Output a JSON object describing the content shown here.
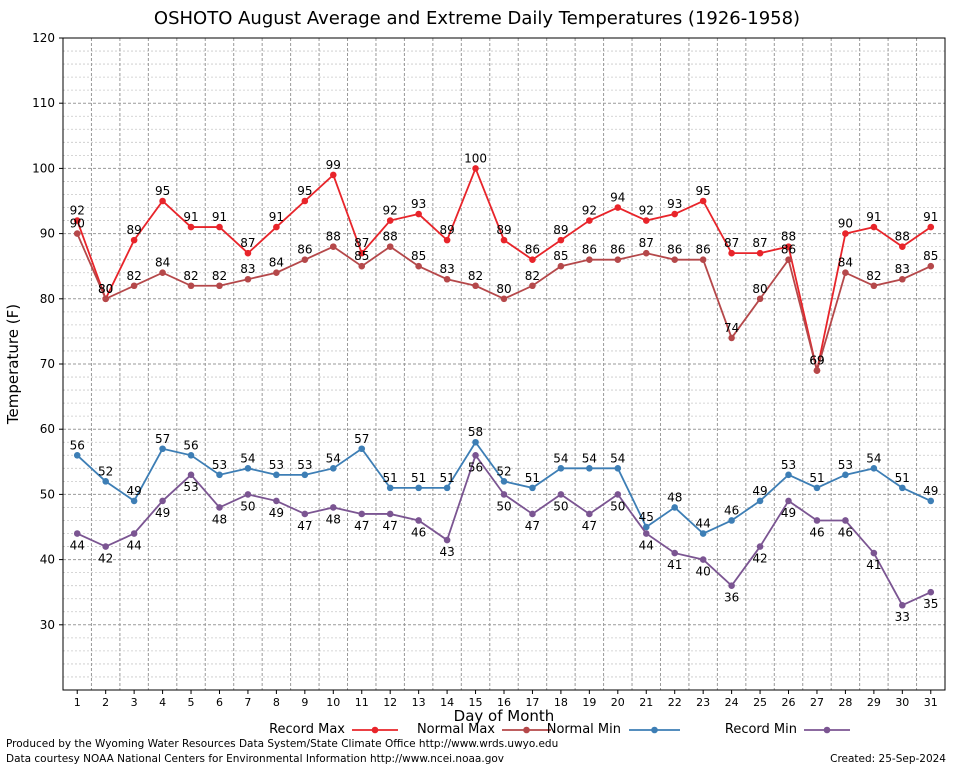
{
  "chart_data": {
    "type": "line",
    "title": "OSHOTO August Average and Extreme Daily Temperatures (1926-1958)",
    "xlabel": "Day of Month",
    "ylabel": "Temperature (F)",
    "ylim": [
      20,
      120
    ],
    "yticks": [
      30,
      40,
      50,
      60,
      70,
      80,
      90,
      100,
      110,
      120
    ],
    "x": [
      1,
      2,
      3,
      4,
      5,
      6,
      7,
      8,
      9,
      10,
      11,
      12,
      13,
      14,
      15,
      16,
      17,
      18,
      19,
      20,
      21,
      22,
      23,
      24,
      25,
      26,
      27,
      28,
      29,
      30,
      31
    ],
    "grid": true,
    "legend_position": "bottom",
    "series": [
      {
        "name": "Record Max",
        "color": "#e8242a",
        "label_pos": "above",
        "values": [
          92,
          80,
          89,
          95,
          91,
          91,
          87,
          91,
          95,
          99,
          87,
          92,
          93,
          89,
          100,
          89,
          86,
          89,
          92,
          94,
          92,
          93,
          95,
          87,
          87,
          88,
          69,
          90,
          91,
          88,
          91
        ]
      },
      {
        "name": "Normal Max",
        "color": "#b5484a",
        "label_pos": "above",
        "values": [
          90,
          80,
          82,
          84,
          82,
          82,
          83,
          84,
          86,
          88,
          85,
          88,
          85,
          83,
          82,
          80,
          82,
          85,
          86,
          86,
          87,
          86,
          86,
          74,
          80,
          86,
          69,
          84,
          82,
          83,
          85
        ]
      },
      {
        "name": "Normal Min",
        "color": "#3d7eb5",
        "label_pos": "above",
        "values": [
          56,
          52,
          49,
          57,
          56,
          53,
          54,
          53,
          53,
          54,
          57,
          51,
          51,
          51,
          58,
          52,
          51,
          54,
          54,
          54,
          45,
          48,
          44,
          46,
          49,
          53,
          51,
          53,
          54,
          51,
          49
        ]
      },
      {
        "name": "Record Min",
        "color": "#7b5592",
        "label_pos": "below",
        "values": [
          44,
          42,
          44,
          49,
          53,
          48,
          50,
          49,
          47,
          48,
          47,
          47,
          46,
          43,
          56,
          50,
          47,
          50,
          47,
          50,
          44,
          41,
          40,
          36,
          42,
          49,
          46,
          46,
          41,
          33,
          35
        ]
      }
    ]
  },
  "footer": {
    "line1": "Produced by the Wyoming Water Resources Data System/State Climate Office http://www.wrds.uwyo.edu",
    "line2": "Data courtesy NOAA National Centers for Environmental Information http://www.ncei.noaa.gov",
    "created": "Created: 25-Sep-2024"
  }
}
